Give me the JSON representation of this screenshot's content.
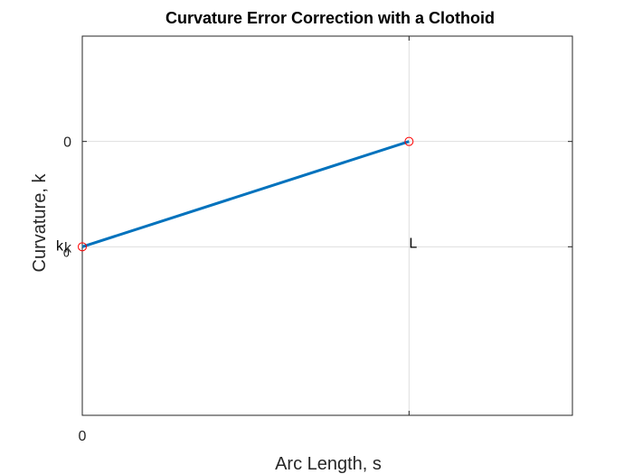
{
  "chart_data": {
    "type": "line",
    "title": "Curvature Error Correction with a Clothoid",
    "xlabel": "Arc Length, s",
    "ylabel": "Curvature, k",
    "xlim": [
      0,
      1.5
    ],
    "ylim": [
      -2.6,
      1
    ],
    "grid": true,
    "x_ticks": [
      {
        "value": 0,
        "label": "0"
      },
      {
        "value": 1,
        "label": ""
      }
    ],
    "y_ticks": [
      {
        "value": 0,
        "label": "0"
      },
      {
        "value": -1,
        "label": "k"
      }
    ],
    "series": [
      {
        "x": [
          0,
          1
        ],
        "y": [
          -1,
          0
        ],
        "color": "#0072bd"
      }
    ],
    "markers": [
      {
        "x": 0,
        "y": -1,
        "color": "#ff0000"
      },
      {
        "x": 1,
        "y": 0,
        "color": "#ff0000"
      }
    ],
    "annotations": [
      {
        "text": "k",
        "subscript": "0",
        "x": 0,
        "y": -1
      },
      {
        "text": "L",
        "x": 1,
        "y": -1
      }
    ]
  }
}
